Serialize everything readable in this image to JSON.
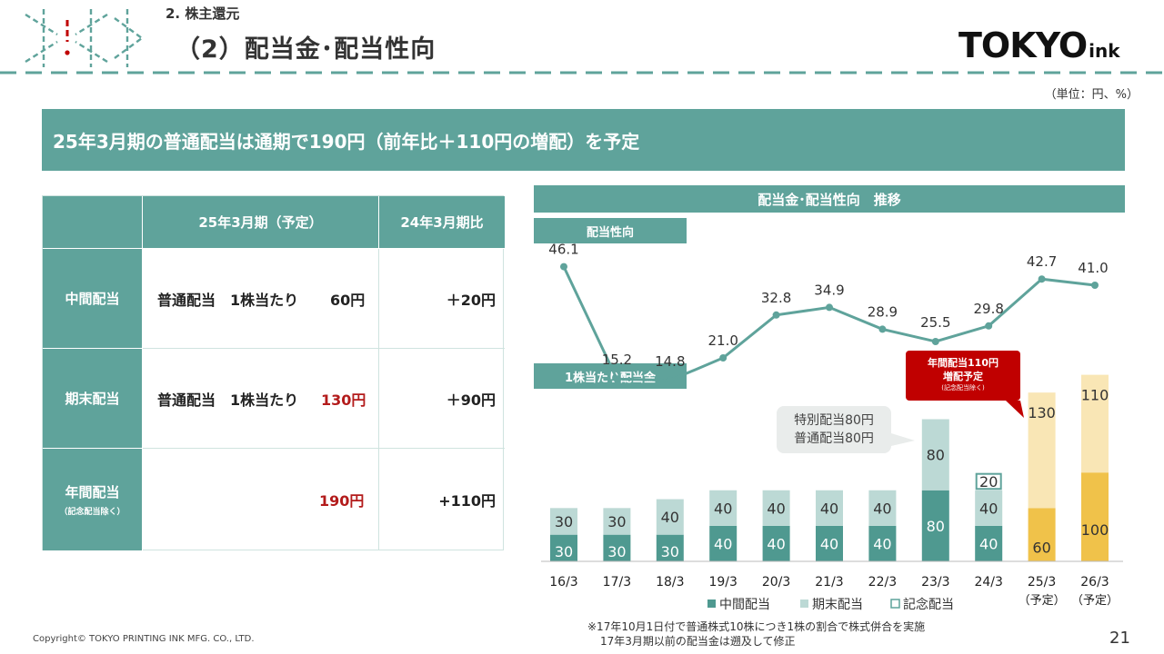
{
  "header": {
    "section": "2. 株主還元",
    "title": "（2）配当金･配当性向",
    "logo_main": "TOKYO",
    "logo_sub": "ink",
    "unit": "（単位：円、%）"
  },
  "colors": {
    "teal": "#5fa39b",
    "teal_light": "#bcd9d5",
    "dark_teal": "#4f9990",
    "yellow": "#f0c24a",
    "yellow_light": "#f9e6b5",
    "red": "#c00000"
  },
  "banner": "25年3月期の普通配当は通期で190円（前年比＋110円の増配）を予定",
  "table": {
    "col_headers": [
      "",
      "25年3月期（予定）",
      "24年3月期比"
    ],
    "rows": [
      {
        "label": "中間配当",
        "sublabel": "",
        "desc": "普通配当　1株当たり",
        "value": "60円",
        "diff": "＋20円"
      },
      {
        "label": "期末配当",
        "sublabel": "",
        "desc": "普通配当　1株当たり",
        "value": "130円",
        "diff": "＋90円"
      },
      {
        "label": "年間配当",
        "sublabel": "（記念配当除く）",
        "desc": "",
        "value": "190円",
        "diff": "+110円"
      }
    ]
  },
  "chart_panel": {
    "title": "配当金･配当性向　推移",
    "payout_label": "配当性向",
    "dps_label": "1株当たり配当金",
    "callout_red": {
      "line1": "年間配当110円",
      "line2": "増配予定",
      "line3": "(記念配当除く)"
    },
    "callout_grey": {
      "line1": "特別配当80円",
      "line2": "普通配当80円"
    },
    "legend": [
      "中間配当",
      "期末配当",
      "記念配当"
    ]
  },
  "chart_data": {
    "type": "bar",
    "categories": [
      "16/3",
      "17/3",
      "18/3",
      "19/3",
      "20/3",
      "21/3",
      "22/3",
      "23/3",
      "24/3",
      "25/3",
      "26/3"
    ],
    "category_sub": [
      "",
      "",
      "",
      "",
      "",
      "",
      "",
      "",
      "",
      "（予定）",
      "（予定）"
    ],
    "series": [
      {
        "name": "中間配当",
        "values": [
          30,
          30,
          30,
          40,
          40,
          40,
          40,
          80,
          40,
          60,
          100
        ]
      },
      {
        "name": "期末配当",
        "values": [
          30,
          30,
          40,
          40,
          40,
          40,
          40,
          80,
          40,
          130,
          110
        ]
      },
      {
        "name": "記念配当",
        "values": [
          0,
          0,
          0,
          0,
          0,
          0,
          0,
          0,
          20,
          0,
          0
        ]
      }
    ],
    "payout_ratio": {
      "categories": [
        "16/3",
        "17/3",
        "18/3",
        "19/3",
        "20/3",
        "21/3",
        "22/3",
        "23/3",
        "24/3",
        "25/3",
        "26/3"
      ],
      "values": [
        46.1,
        15.2,
        14.8,
        21.0,
        32.8,
        34.9,
        28.9,
        25.5,
        29.8,
        42.7,
        41.0
      ],
      "labels": [
        "46.1",
        "15.2",
        "14.8",
        "21.0",
        "32.8",
        "34.9",
        "28.9",
        "25.5",
        "29.8",
        "42.7",
        "41.0"
      ]
    },
    "forecast_categories": [
      "25/3",
      "26/3"
    ],
    "legend_placement": "bottom"
  },
  "footnote": {
    "line1": "※17年10月1日付で普通株式10株につき1株の割合で株式併合を実施",
    "line2": "17年3月期以前の配当金は遡及して修正"
  },
  "footer": {
    "copyright": "Copyright© TOKYO PRINTING INK MFG. CO., LTD.",
    "page": "21"
  }
}
